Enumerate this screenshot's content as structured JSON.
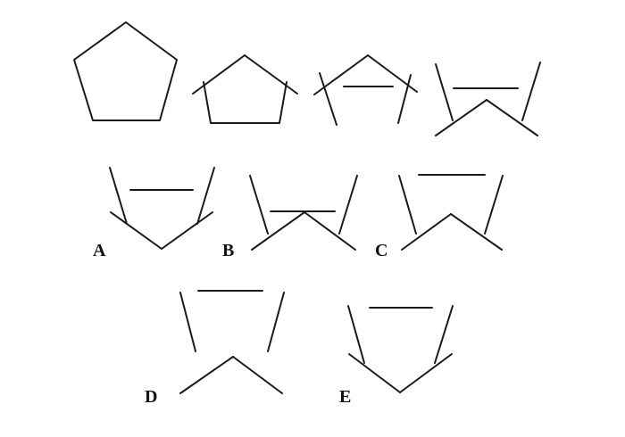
{
  "sequence": {
    "figures": [
      "step-1",
      "step-2",
      "step-3",
      "step-4"
    ]
  },
  "options": [
    {
      "id": "A",
      "label": "A"
    },
    {
      "id": "B",
      "label": "B"
    },
    {
      "id": "C",
      "label": "C"
    },
    {
      "id": "D",
      "label": "D"
    },
    {
      "id": "E",
      "label": "E"
    }
  ]
}
